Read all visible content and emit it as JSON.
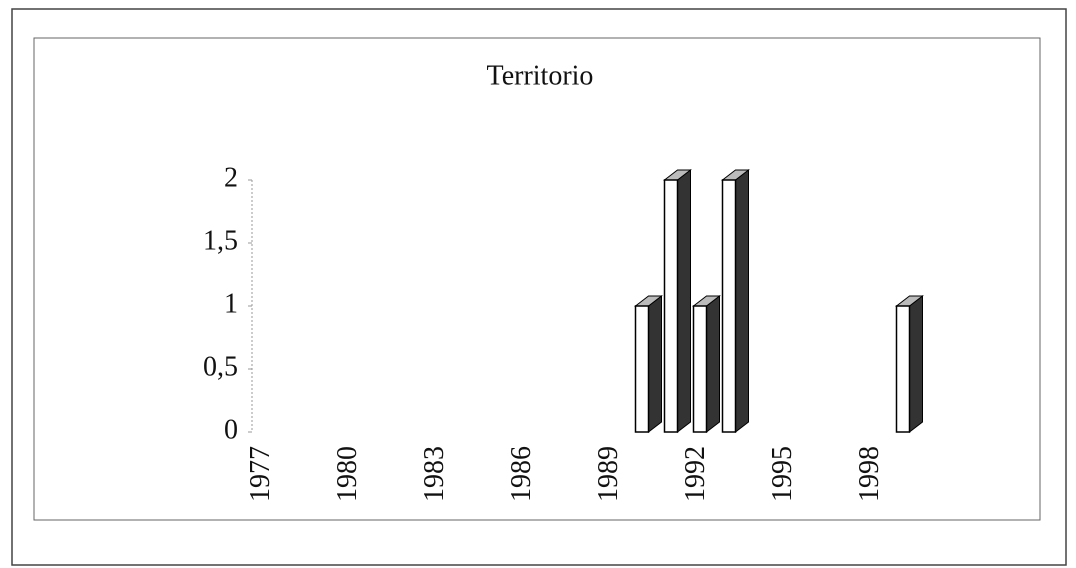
{
  "chart_data": {
    "type": "bar3d",
    "title": "Territorio",
    "categories": [
      "1977",
      null,
      null,
      "1980",
      null,
      null,
      "1983",
      null,
      null,
      "1986",
      null,
      null,
      "1989",
      null,
      null,
      "1992",
      null,
      null,
      "1995",
      null,
      null,
      "1998",
      null
    ],
    "values": [
      0,
      0,
      0,
      0,
      0,
      0,
      0,
      0,
      0,
      0,
      0,
      0,
      0,
      1,
      2,
      1,
      2,
      0,
      0,
      0,
      0,
      0,
      1
    ],
    "color": "#ffffff",
    "ylim": [
      0,
      2
    ],
    "yticks": [
      0,
      {
        "value": 0.5,
        "label": "0,5"
      },
      1,
      {
        "value": 1.5,
        "label": "1,5"
      },
      2
    ]
  }
}
